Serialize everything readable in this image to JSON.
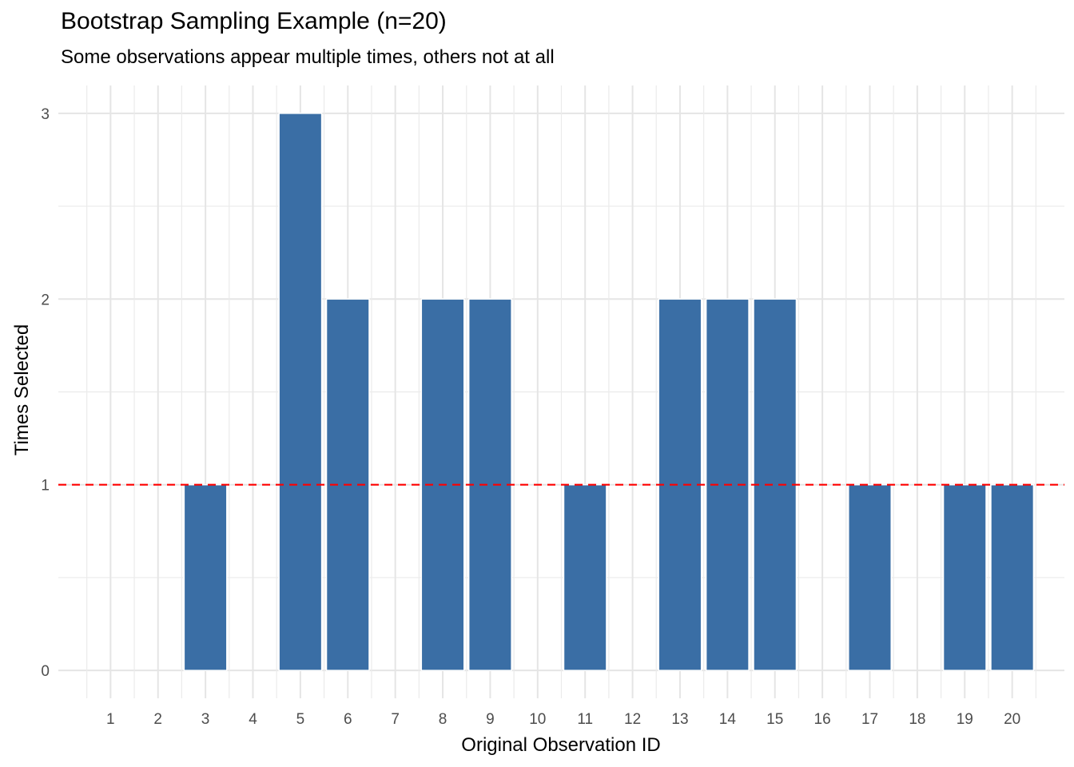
{
  "title": "Bootstrap Sampling Example (n=20)",
  "subtitle": "Some observations appear multiple times, others not at all",
  "chart_data": {
    "type": "bar",
    "title": "Bootstrap Sampling Example (n=20)",
    "subtitle": "Some observations appear multiple times, others not at all",
    "xlabel": "Original Observation ID",
    "ylabel": "Times Selected",
    "categories": [
      "1",
      "2",
      "3",
      "4",
      "5",
      "6",
      "7",
      "8",
      "9",
      "10",
      "11",
      "12",
      "13",
      "14",
      "15",
      "16",
      "17",
      "18",
      "19",
      "20"
    ],
    "values": [
      0,
      0,
      1,
      0,
      3,
      2,
      0,
      2,
      2,
      0,
      1,
      0,
      2,
      2,
      2,
      0,
      1,
      0,
      1,
      1
    ],
    "yticks": [
      "0",
      "1",
      "2",
      "3"
    ],
    "ylim": [
      -0.15,
      3.15
    ],
    "reference_line": {
      "y": 1,
      "style": "dashed",
      "color": "#ff0000"
    },
    "bar_color": "#3a6ea5",
    "grid": true,
    "legend": "none"
  }
}
